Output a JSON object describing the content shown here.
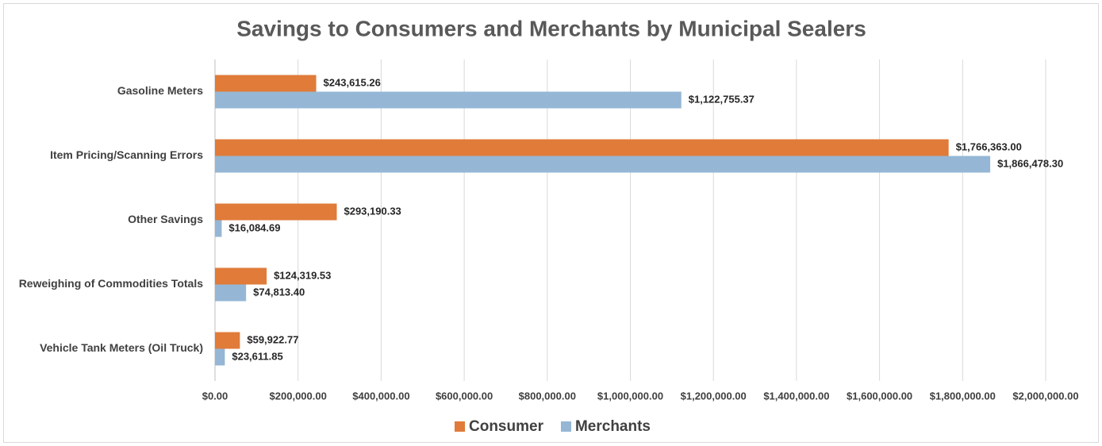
{
  "chart_data": {
    "type": "bar",
    "orientation": "horizontal",
    "title": "Savings to Consumers and Merchants by Municipal Sealers",
    "categories": [
      "Gasoline Meters",
      "Item Pricing/Scanning Errors",
      "Other Savings",
      "Reweighing of Commodities Totals",
      "Vehicle Tank Meters (Oil Truck)"
    ],
    "series": [
      {
        "name": "Consumer",
        "color": "#e07b39",
        "values": [
          243615.26,
          1766363.0,
          293190.33,
          124319.53,
          59922.77
        ],
        "value_labels": [
          "$243,615.26",
          "$1,766,363.00",
          "$293,190.33",
          "$124,319.53",
          "$59,922.77"
        ]
      },
      {
        "name": "Merchants",
        "color": "#95b7d5",
        "values": [
          1122755.37,
          1866478.3,
          16084.69,
          74813.4,
          23611.85
        ],
        "value_labels": [
          "$1,122,755.37",
          "$1,866,478.30",
          "$16,084.69",
          "$74,813.40",
          "$23,611.85"
        ]
      }
    ],
    "xlim": [
      0,
      2000000
    ],
    "xticks": [
      {
        "value": 0,
        "label": "$0.00"
      },
      {
        "value": 200000,
        "label": "$200,000.00"
      },
      {
        "value": 400000,
        "label": "$400,000.00"
      },
      {
        "value": 600000,
        "label": "$600,000.00"
      },
      {
        "value": 800000,
        "label": "$800,000.00"
      },
      {
        "value": 1000000,
        "label": "$1,000,000.00"
      },
      {
        "value": 1200000,
        "label": "$1,200,000.00"
      },
      {
        "value": 1400000,
        "label": "$1,400,000.00"
      },
      {
        "value": 1600000,
        "label": "$1,600,000.00"
      },
      {
        "value": 1800000,
        "label": "$1,800,000.00"
      },
      {
        "value": 2000000,
        "label": "$2,000,000.00"
      }
    ],
    "grid": true,
    "legend": "bottom"
  }
}
